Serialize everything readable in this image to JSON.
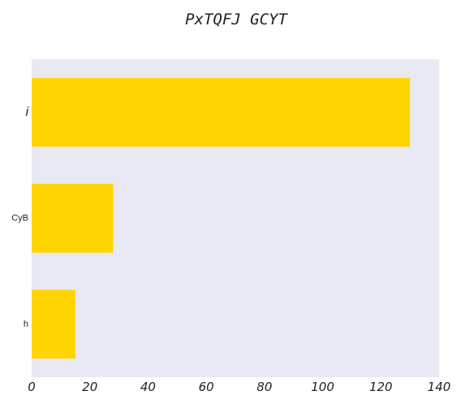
{
  "chart_data": {
    "type": "bar",
    "orientation": "horizontal",
    "title": "PxTQFJ GCYT",
    "xlabel": "",
    "ylabel": "",
    "categories": [
      "i",
      "CyB",
      "h"
    ],
    "values": [
      130,
      28,
      15
    ],
    "xlim": [
      0,
      140
    ],
    "xticks": [
      "0",
      "20",
      "40",
      "60",
      "80",
      "100",
      "120",
      "140"
    ],
    "grid": false,
    "legend": "none",
    "colors": {
      "bar": "#ffd400",
      "plot_background": "#e9e9f3",
      "text": "#222222"
    }
  }
}
